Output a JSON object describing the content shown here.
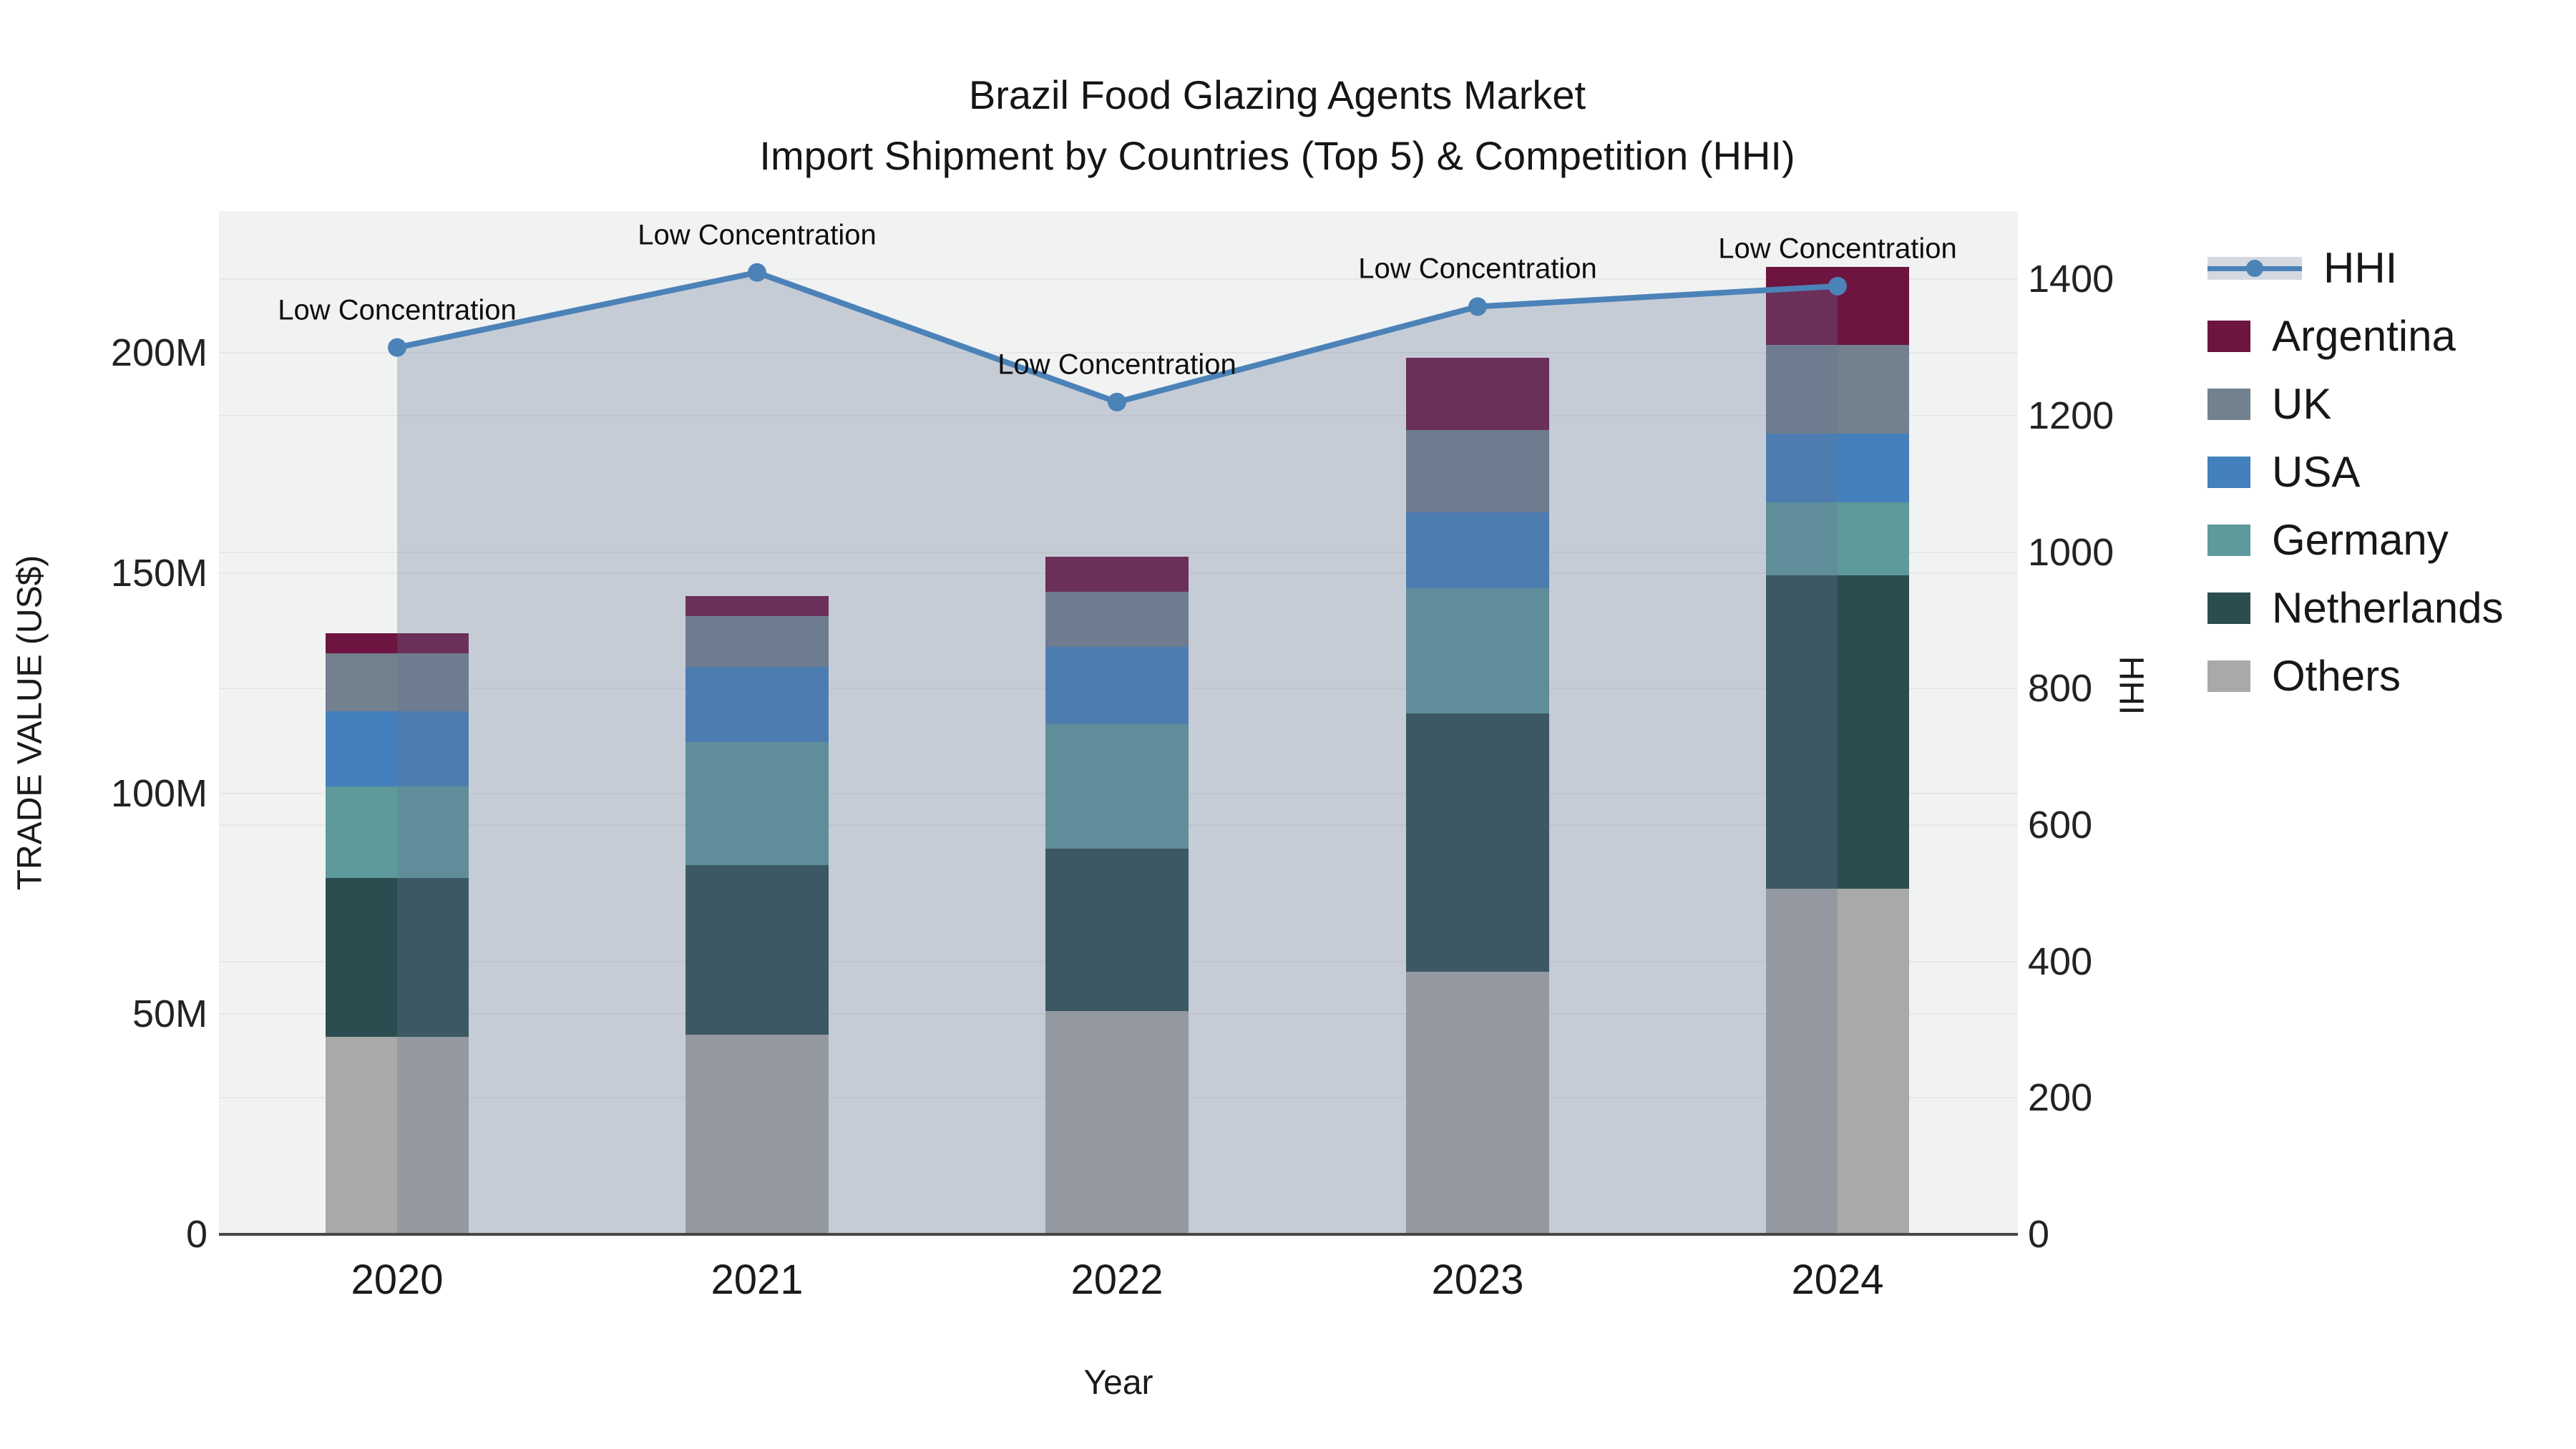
{
  "title": {
    "line1": "Brazil Food Glazing Agents Market",
    "line2": "Import Shipment by Countries (Top 5) & Competition (HHI)"
  },
  "axes": {
    "left": {
      "title": "TRADE VALUE (US$)",
      "ticks": [
        {
          "label": "0",
          "value": 0
        },
        {
          "label": "50M",
          "value": 50
        },
        {
          "label": "100M",
          "value": 100
        },
        {
          "label": "150M",
          "value": 150
        },
        {
          "label": "200M",
          "value": 200
        }
      ]
    },
    "right": {
      "title": "HHI",
      "ticks": [
        {
          "label": "0",
          "value": 0
        },
        {
          "label": "200",
          "value": 200
        },
        {
          "label": "400",
          "value": 400
        },
        {
          "label": "600",
          "value": 600
        },
        {
          "label": "800",
          "value": 800
        },
        {
          "label": "1000",
          "value": 1000
        },
        {
          "label": "1200",
          "value": 1200
        },
        {
          "label": "1400",
          "value": 1400
        }
      ]
    },
    "bottom": {
      "title": "Year"
    }
  },
  "legend": {
    "items": [
      {
        "label": "HHI",
        "type": "line",
        "color": "#4b82b8"
      },
      {
        "label": "Argentina",
        "type": "swatch",
        "color": "#6e1440"
      },
      {
        "label": "UK",
        "type": "swatch",
        "color": "#73808e"
      },
      {
        "label": "USA",
        "type": "swatch",
        "color": "#4480bd"
      },
      {
        "label": "Germany",
        "type": "swatch",
        "color": "#5e999c"
      },
      {
        "label": "Netherlands",
        "type": "swatch",
        "color": "#2c4d50"
      },
      {
        "label": "Others",
        "type": "swatch",
        "color": "#a9a9a7"
      }
    ]
  },
  "chart_data": {
    "type": "bar+line",
    "title": "Brazil Food Glazing Agents Market - Import Shipment by Countries (Top 5) & Competition (HHI)",
    "xlabel": "Year",
    "ylabel_left": "TRADE VALUE (US$)",
    "ylabel_right": "HHI",
    "categories": [
      "2020",
      "2021",
      "2022",
      "2023",
      "2024"
    ],
    "unit": "M US$",
    "stack_order": "bottom to top",
    "series": [
      {
        "name": "Others",
        "color": "#a9a9a7",
        "values": [
          44.8,
          45.3,
          50.7,
          59.6,
          78.4
        ]
      },
      {
        "name": "Netherlands",
        "color": "#2c4d50",
        "values": [
          36.0,
          38.5,
          36.9,
          58.6,
          71.1
        ]
      },
      {
        "name": "Germany",
        "color": "#5e999c",
        "values": [
          20.8,
          27.9,
          28.1,
          28.4,
          16.6
        ]
      },
      {
        "name": "USA",
        "color": "#4480bd",
        "values": [
          17.1,
          17.0,
          17.6,
          17.2,
          15.6
        ]
      },
      {
        "name": "UK",
        "color": "#73808e",
        "values": [
          13.1,
          11.6,
          12.5,
          18.7,
          20.1
        ]
      },
      {
        "name": "Argentina",
        "color": "#6e1440",
        "values": [
          4.6,
          4.5,
          7.9,
          16.4,
          17.8
        ]
      }
    ],
    "bar_totals": [
      136.4,
      144.8,
      153.7,
      198.9,
      219.6
    ],
    "line_series": {
      "name": "HHI",
      "axis": "right",
      "color": "#4b82b8",
      "fill_color": "rgba(99,115,149,0.30)",
      "values": [
        1300,
        1410,
        1220,
        1360,
        1390
      ],
      "annotations": [
        "Low Concentration",
        "Low Concentration",
        "Low Concentration",
        "Low Concentration",
        "Low Concentration"
      ]
    },
    "ylim_left": [
      0,
      232.2
    ],
    "ylim_right": [
      0,
      1500
    ],
    "grid": true,
    "legend_position": "right"
  }
}
